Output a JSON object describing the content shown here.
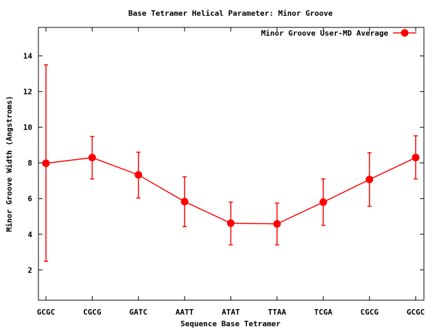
{
  "chart_data": {
    "type": "line",
    "title": "Base Tetramer Helical Parameter: Minor Groove",
    "xlabel": "Sequence Base Tetramer",
    "ylabel": "Minor Groove Width (Angstroms)",
    "categories": [
      "GCGC",
      "CGCG",
      "GATC",
      "AATT",
      "ATAT",
      "TTAA",
      "TCGA",
      "CGCG",
      "GCGC"
    ],
    "ylim": [
      0.3,
      15.6
    ],
    "yticks": [
      2,
      4,
      6,
      8,
      10,
      12,
      14
    ],
    "legend_position": "top-right",
    "grid": false,
    "series": [
      {
        "name": "Minor Groove User-MD Average",
        "color": "#ff0000",
        "values": [
          7.98,
          8.3,
          7.33,
          5.83,
          4.62,
          4.58,
          5.8,
          7.07,
          8.3
        ],
        "err_lower": [
          2.48,
          7.1,
          6.03,
          4.43,
          3.4,
          3.4,
          4.5,
          5.57,
          7.1
        ],
        "err_upper": [
          13.5,
          9.48,
          8.6,
          7.22,
          5.8,
          5.75,
          7.1,
          8.57,
          9.52
        ]
      }
    ]
  }
}
